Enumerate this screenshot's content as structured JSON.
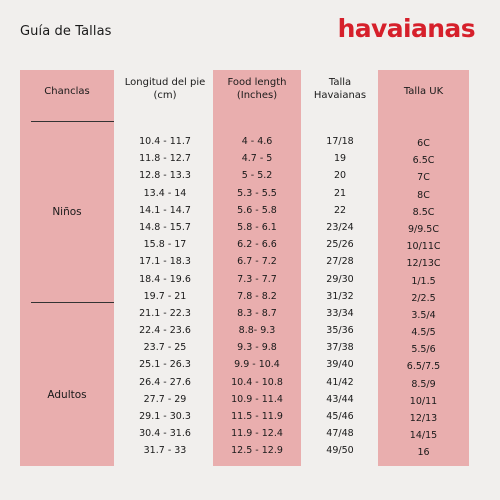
{
  "page_title": "Guía de Tallas",
  "brand": "havaianas",
  "headers": {
    "chanclas": "Chanclas",
    "longitud": "Longitud del pie (cm)",
    "food_length": "Food length (Inches)",
    "talla_havaianas": "Talla Havaianas",
    "talla_uk": "Talla UK"
  },
  "groups": {
    "ninos": "Niños",
    "adultos": "Adultos"
  },
  "rows": [
    {
      "cm": "10.4 - 11.7",
      "inches": "4 - 4.6",
      "havaianas": "17/18",
      "uk": "6C"
    },
    {
      "cm": "11.8 - 12.7",
      "inches": "4.7 - 5",
      "havaianas": "19",
      "uk": "6.5C"
    },
    {
      "cm": "12.8 - 13.3",
      "inches": "5 - 5.2",
      "havaianas": "20",
      "uk": "7C"
    },
    {
      "cm": "13.4 - 14",
      "inches": "5.3 - 5.5",
      "havaianas": "21",
      "uk": "8C"
    },
    {
      "cm": "14.1 - 14.7",
      "inches": "5.6 - 5.8",
      "havaianas": "22",
      "uk": "8.5C"
    },
    {
      "cm": "14.8 - 15.7",
      "inches": "5.8 - 6.1",
      "havaianas": "23/24",
      "uk": "9/9.5C"
    },
    {
      "cm": "15.8 - 17",
      "inches": "6.2 - 6.6",
      "havaianas": "25/26",
      "uk": "10/11C"
    },
    {
      "cm": "17.1 - 18.3",
      "inches": "6.7 - 7.2",
      "havaianas": "27/28",
      "uk": "12/13C"
    },
    {
      "cm": "18.4 - 19.6",
      "inches": "7.3 - 7.7",
      "havaianas": "29/30",
      "uk": "1/1.5"
    },
    {
      "cm": "19.7 - 21",
      "inches": "7.8 - 8.2",
      "havaianas": "31/32",
      "uk": "2/2.5"
    },
    {
      "cm": "21.1 - 22.3",
      "inches": "8.3 - 8.7",
      "havaianas": "33/34",
      "uk": "3.5/4"
    },
    {
      "cm": "22.4 - 23.6",
      "inches": "8.8- 9.3",
      "havaianas": "35/36",
      "uk": "4.5/5"
    },
    {
      "cm": "23.7 - 25",
      "inches": "9.3 - 9.8",
      "havaianas": "37/38",
      "uk": "5.5/6"
    },
    {
      "cm": "25.1 - 26.3",
      "inches": "9.9 - 10.4",
      "havaianas": "39/40",
      "uk": "6.5/7.5"
    },
    {
      "cm": "26.4 - 27.6",
      "inches": "10.4 - 10.8",
      "havaianas": "41/42",
      "uk": "8.5/9"
    },
    {
      "cm": "27.7 - 29",
      "inches": "10.9 - 11.4",
      "havaianas": "43/44",
      "uk": "10/11"
    },
    {
      "cm": "29.1 - 30.3",
      "inches": "11.5 - 11.9",
      "havaianas": "45/46",
      "uk": "12/13"
    },
    {
      "cm": "30.4 - 31.6",
      "inches": "11.9 - 12.4",
      "havaianas": "47/48",
      "uk": "14/15"
    },
    {
      "cm": "31.7 - 33",
      "inches": "12.5 - 12.9",
      "havaianas": "49/50",
      "uk": "16"
    }
  ],
  "colors": {
    "background": "#f1efed",
    "column_highlight": "#e9aeae",
    "brand_red": "#d6202b"
  }
}
